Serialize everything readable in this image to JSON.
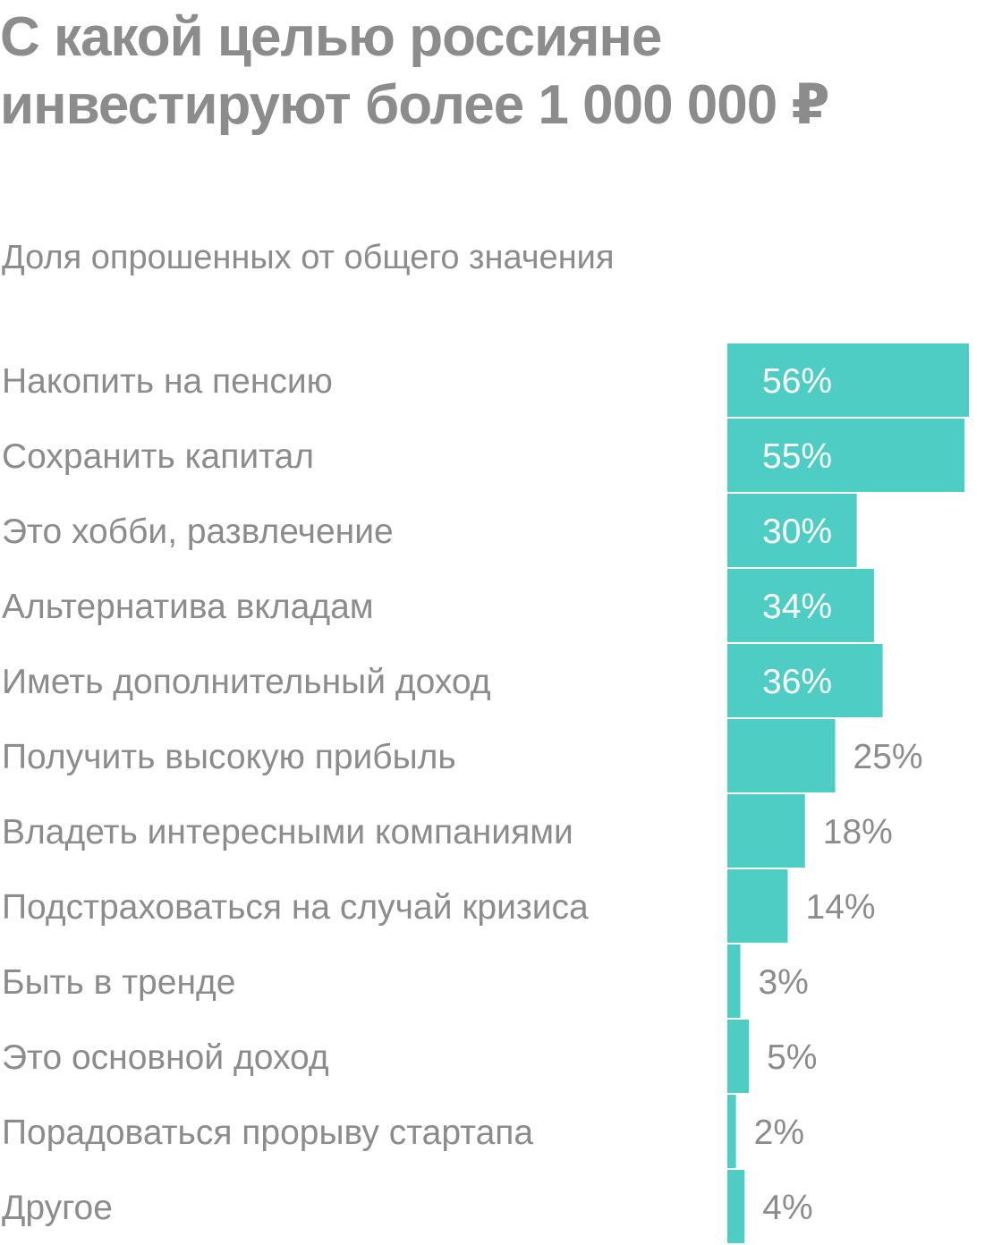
{
  "header": {
    "title": "С какой целью россияне инвестируют более 1 000 000 ₽",
    "subtitle": "Доля опрошенных от общего значения"
  },
  "colors": {
    "bar": "#4ecdc4",
    "text": "#8c8c8c",
    "label_inside": "#ffffff",
    "background": "#ffffff"
  },
  "chart_data": {
    "type": "bar",
    "orientation": "horizontal",
    "title": "С какой целью россияне инвестируют более 1 000 000 ₽",
    "subtitle": "Доля опрошенных от общего значения",
    "categories": [
      "Накопить на пенсию",
      "Сохранить капитал",
      "Это хобби, развлечение",
      "Альтернатива вкладам",
      "Иметь дополнительный доход",
      "Получить высокую прибыль",
      "Владеть интересными компаниями",
      "Подстраховаться на случай кризиса",
      "Быть в тренде",
      "Это основной доход",
      "Порадоваться прорыву стартапа",
      "Другое"
    ],
    "values": [
      56,
      55,
      30,
      34,
      36,
      25,
      18,
      14,
      3,
      5,
      2,
      4
    ],
    "value_labels": [
      "56%",
      "55%",
      "30%",
      "34%",
      "36%",
      "25%",
      "18%",
      "14%",
      "3%",
      "5%",
      "2%",
      "4%"
    ],
    "unit": "%",
    "xlim": [
      0,
      56
    ],
    "grid": false,
    "legend": "none"
  }
}
